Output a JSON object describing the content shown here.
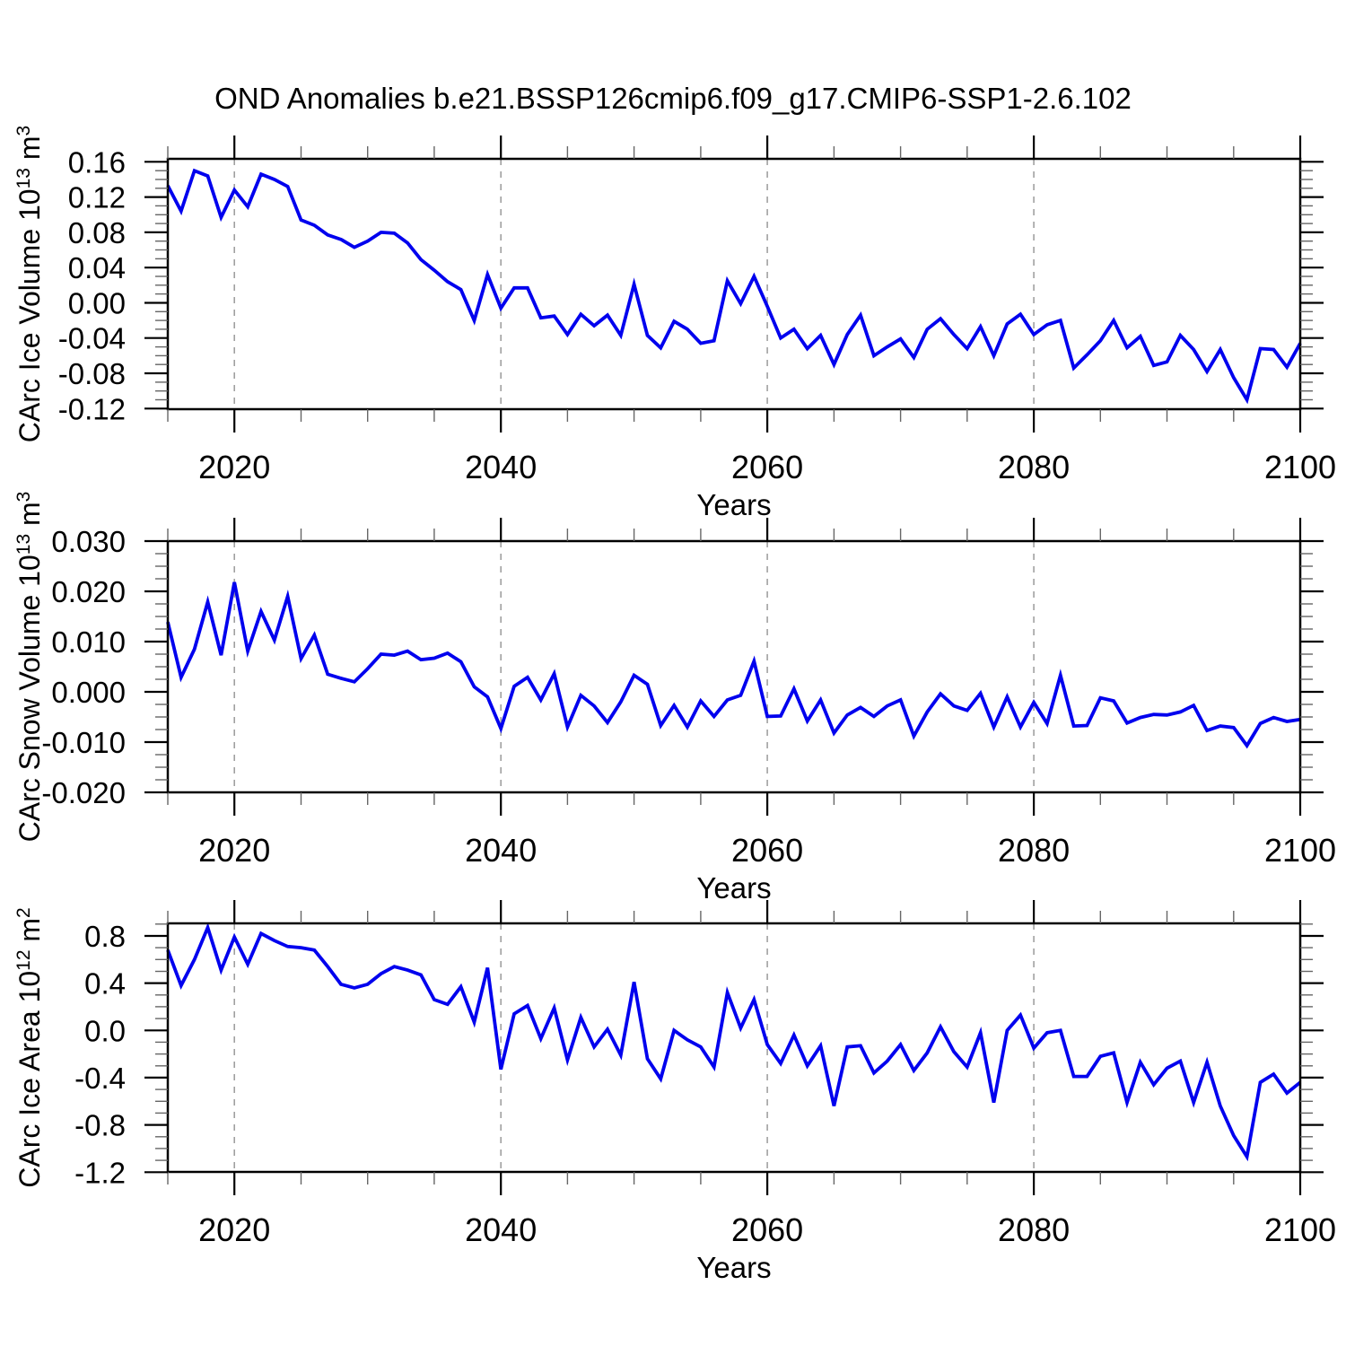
{
  "chart_data": {
    "type": "line",
    "title": "OND Anomalies b.e21.BSSP126cmip6.f09_g17.CMIP6-SSP1-2.6.102",
    "layout_hint": "three stacked panels, shared x axis style, dashed vertical gridlines, ticks on all four sides pointing outward, no legend",
    "line_color": "#0000EE",
    "gridline_color": "#A0A0A0",
    "x": {
      "label": "Years",
      "start_year": 2015,
      "end_year": 2100,
      "major_ticks": [
        2020,
        2040,
        2060,
        2080,
        2100
      ],
      "major_tick_labels": [
        "2020",
        "2040",
        "2060",
        "2080",
        "2100"
      ],
      "minor_step": 5,
      "dashed_gridlines": [
        2020,
        2040,
        2060,
        2080
      ]
    },
    "panels": [
      {
        "id": "ice-volume",
        "ylabel": "CArc Ice Volume 10^13 m^3",
        "ylabel_parts": {
          "main": "CArc Ice Volume 10",
          "sup1": "13",
          "mid": " m",
          "sup2": "3"
        },
        "ylim": [
          -0.1207,
          0.1634
        ],
        "y_major_ticks": [
          0.16,
          0.12,
          0.08,
          0.04,
          0.0,
          -0.04,
          -0.08,
          -0.12
        ],
        "y_major_tick_labels": [
          "0.16",
          "0.12",
          "0.08",
          "0.04",
          "0.00",
          "-0.04",
          "-0.08",
          "-0.12"
        ],
        "values": [
          0.133,
          0.104,
          0.15,
          0.144,
          0.097,
          0.128,
          0.109,
          0.146,
          0.14,
          0.132,
          0.094,
          0.088,
          0.077,
          0.072,
          0.063,
          0.07,
          0.08,
          0.079,
          0.068,
          0.049,
          0.037,
          0.024,
          0.015,
          -0.02,
          0.032,
          -0.006,
          0.017,
          0.017,
          -0.017,
          -0.015,
          -0.036,
          -0.013,
          -0.026,
          -0.014,
          -0.037,
          0.021,
          -0.037,
          -0.051,
          -0.021,
          -0.03,
          -0.046,
          -0.043,
          0.025,
          -0.001,
          0.03,
          -0.004,
          -0.04,
          -0.03,
          -0.052,
          -0.037,
          -0.07,
          -0.036,
          -0.014,
          -0.06,
          -0.05,
          -0.041,
          -0.062,
          -0.03,
          -0.018,
          -0.036,
          -0.052,
          -0.027,
          -0.06,
          -0.024,
          -0.013,
          -0.036,
          -0.025,
          -0.02,
          -0.074,
          -0.059,
          -0.043,
          -0.02,
          -0.051,
          -0.038,
          -0.071,
          -0.067,
          -0.037,
          -0.053,
          -0.078,
          -0.053,
          -0.085,
          -0.11,
          -0.052,
          -0.053,
          -0.073,
          -0.046
        ]
      },
      {
        "id": "snow-volume",
        "ylabel": "CArc Snow Volume 10^13 m^3",
        "ylabel_parts": {
          "main": "CArc Snow Volume 10",
          "sup1": "13",
          "mid": " m",
          "sup2": "3"
        },
        "ylim": [
          -0.02,
          0.03
        ],
        "y_major_ticks": [
          0.03,
          0.02,
          0.01,
          0.0,
          -0.01,
          -0.02
        ],
        "y_major_tick_labels": [
          "0.030",
          "0.020",
          "0.010",
          "0.000",
          "-0.010",
          "-0.020"
        ],
        "values": [
          0.0139,
          0.0029,
          0.0085,
          0.0179,
          0.0073,
          0.0218,
          0.0081,
          0.016,
          0.0103,
          0.019,
          0.0066,
          0.0113,
          0.0035,
          0.0027,
          0.002,
          0.0046,
          0.0075,
          0.0073,
          0.0081,
          0.0064,
          0.0067,
          0.0077,
          0.006,
          0.001,
          -0.001,
          -0.0073,
          0.0011,
          0.0029,
          -0.0016,
          0.0036,
          -0.007,
          -0.0007,
          -0.0028,
          -0.0061,
          -0.002,
          0.0033,
          0.0015,
          -0.0067,
          -0.0027,
          -0.007,
          -0.0018,
          -0.0049,
          -0.0016,
          -0.0007,
          0.0061,
          -0.0049,
          -0.0048,
          0.0006,
          -0.0058,
          -0.0016,
          -0.0082,
          -0.0046,
          -0.0031,
          -0.0049,
          -0.0028,
          -0.0016,
          -0.0088,
          -0.004,
          -0.0004,
          -0.0028,
          -0.0037,
          -0.0003,
          -0.007,
          -0.001,
          -0.007,
          -0.0021,
          -0.0063,
          0.0033,
          -0.0068,
          -0.0067,
          -0.0012,
          -0.0018,
          -0.0062,
          -0.0051,
          -0.0045,
          -0.0046,
          -0.004,
          -0.0027,
          -0.0077,
          -0.0068,
          -0.0071,
          -0.0107,
          -0.0063,
          -0.0051,
          -0.0059,
          -0.0055
        ]
      },
      {
        "id": "ice-area",
        "ylabel": "CArc Ice Area 10^12 m^2",
        "ylabel_parts": {
          "main": "CArc Ice Area 10",
          "sup1": "12",
          "mid": " m",
          "sup2": "2"
        },
        "ylim": [
          -1.198,
          0.906
        ],
        "y_major_ticks": [
          0.8,
          0.4,
          0.0,
          -0.4,
          -0.8,
          -1.2
        ],
        "y_major_tick_labels": [
          "0.8",
          "0.4",
          "0.0",
          "-0.4",
          "-0.8",
          "-1.2"
        ],
        "values": [
          0.68,
          0.38,
          0.6,
          0.87,
          0.51,
          0.79,
          0.56,
          0.82,
          0.76,
          0.71,
          0.7,
          0.68,
          0.54,
          0.39,
          0.36,
          0.39,
          0.48,
          0.54,
          0.51,
          0.47,
          0.26,
          0.22,
          0.37,
          0.07,
          0.53,
          -0.33,
          0.14,
          0.21,
          -0.07,
          0.19,
          -0.25,
          0.11,
          -0.14,
          0.01,
          -0.21,
          0.41,
          -0.24,
          -0.41,
          0.0,
          -0.08,
          -0.14,
          -0.31,
          0.32,
          0.02,
          0.26,
          -0.12,
          -0.28,
          -0.04,
          -0.3,
          -0.13,
          -0.64,
          -0.14,
          -0.13,
          -0.36,
          -0.26,
          -0.12,
          -0.34,
          -0.19,
          0.03,
          -0.18,
          -0.31,
          -0.02,
          -0.61,
          0.0,
          0.13,
          -0.15,
          -0.02,
          0.0,
          -0.39,
          -0.39,
          -0.22,
          -0.19,
          -0.61,
          -0.27,
          -0.46,
          -0.32,
          -0.26,
          -0.61,
          -0.27,
          -0.64,
          -0.89,
          -1.07,
          -0.44,
          -0.37,
          -0.53,
          -0.44
        ]
      }
    ]
  }
}
